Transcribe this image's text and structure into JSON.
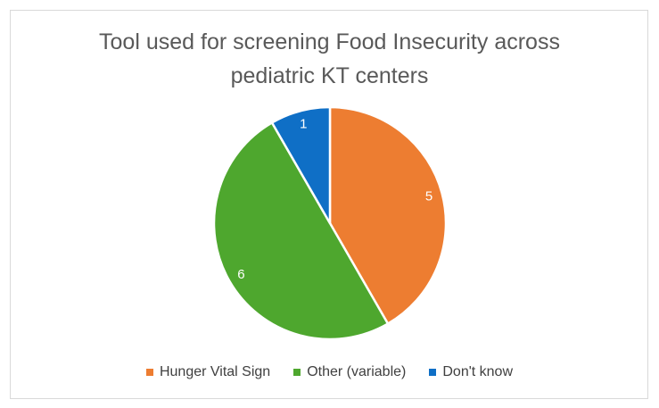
{
  "chart_data": {
    "type": "pie",
    "title": "Tool used for screening Food Insecurity across\npediatric KT centers",
    "slices": [
      {
        "label": "Hunger Vital Sign",
        "value": 5,
        "data_label": "5",
        "color": "#ED7D31"
      },
      {
        "label": "Other (variable)",
        "value": 6,
        "data_label": "6",
        "color": "#4EA72E"
      },
      {
        "label": "Don't know",
        "value": 1,
        "data_label": "1",
        "color": "#0F6FC6"
      }
    ],
    "start": "12 o'clock",
    "direction": "clockwise",
    "legend_position": "bottom"
  }
}
